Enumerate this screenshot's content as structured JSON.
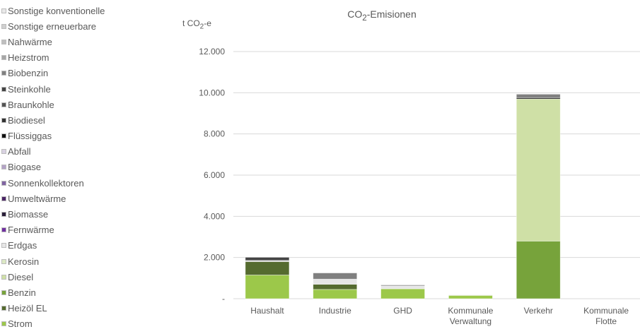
{
  "chart_data": {
    "type": "bar",
    "stacked": true,
    "title": "CO₂-Emisionen",
    "title_prefix": "CO",
    "title_sub": "2",
    "title_suffix": "-Emisionen",
    "ylabel": "t CO₂-e",
    "ylabel_prefix": "t CO",
    "ylabel_sub": "2",
    "ylabel_suffix": "-e",
    "ylim": [
      0,
      12000
    ],
    "yticks": [
      0,
      2000,
      4000,
      6000,
      8000,
      10000,
      12000
    ],
    "ytick_labels": [
      "-",
      "2.000",
      "4.000",
      "6.000",
      "8.000",
      "10.000",
      "12.000"
    ],
    "grid": true,
    "legend_position": "left",
    "categories": [
      [
        "Haushalt"
      ],
      [
        "Industrie"
      ],
      [
        "GHD"
      ],
      [
        "Kommunale",
        "Verwaltung"
      ],
      [
        "Verkehr"
      ],
      [
        "Kommunale",
        "Flotte"
      ]
    ],
    "series": [
      {
        "name": "Strom",
        "color": "#9cc84a",
        "values": [
          1150,
          450,
          480,
          160,
          0,
          0
        ]
      },
      {
        "name": "Heizöl EL",
        "color": "#556b2f",
        "values": [
          650,
          250,
          0,
          0,
          0,
          0
        ]
      },
      {
        "name": "Benzin",
        "color": "#77a33b",
        "values": [
          0,
          0,
          0,
          0,
          2800,
          0
        ]
      },
      {
        "name": "Diesel",
        "color": "#cfe0a6",
        "values": [
          0,
          0,
          0,
          0,
          6900,
          0
        ]
      },
      {
        "name": "Kerosin",
        "color": "#dce9c4",
        "values": [
          0,
          0,
          0,
          0,
          0,
          0
        ]
      },
      {
        "name": "Erdgas",
        "color": "#e6e6e6",
        "values": [
          40,
          250,
          130,
          30,
          0,
          0
        ]
      },
      {
        "name": "Fernwärme",
        "color": "#7030a0",
        "values": [
          0,
          0,
          0,
          0,
          0,
          0
        ]
      },
      {
        "name": "Biomasse",
        "color": "#2b1f3a",
        "values": [
          0,
          0,
          0,
          0,
          0,
          0
        ]
      },
      {
        "name": "Umweltwärme",
        "color": "#4b2566",
        "values": [
          0,
          0,
          0,
          0,
          0,
          0
        ]
      },
      {
        "name": "Sonnenkollektoren",
        "color": "#8064a2",
        "values": [
          0,
          0,
          0,
          0,
          0,
          0
        ]
      },
      {
        "name": "Biogase",
        "color": "#b3a2c7",
        "values": [
          0,
          0,
          0,
          0,
          0,
          0
        ]
      },
      {
        "name": "Abfall",
        "color": "#d9d2e2",
        "values": [
          0,
          0,
          0,
          0,
          0,
          0
        ]
      },
      {
        "name": "Flüssiggas",
        "color": "#111111",
        "values": [
          20,
          0,
          0,
          0,
          60,
          0
        ]
      },
      {
        "name": "Biodiesel",
        "color": "#333333",
        "values": [
          0,
          0,
          0,
          0,
          0,
          0
        ]
      },
      {
        "name": "Braunkohle",
        "color": "#555555",
        "values": [
          0,
          0,
          0,
          0,
          0,
          0
        ]
      },
      {
        "name": "Steinkohle",
        "color": "#444444",
        "values": [
          150,
          0,
          0,
          0,
          0,
          0
        ]
      },
      {
        "name": "Biobenzin",
        "color": "#808080",
        "values": [
          0,
          300,
          0,
          0,
          170,
          0
        ]
      },
      {
        "name": "Heizstrom",
        "color": "#a6a6a6",
        "values": [
          0,
          0,
          60,
          0,
          0,
          0
        ]
      },
      {
        "name": "Nahwärme",
        "color": "#bfbfbf",
        "values": [
          0,
          0,
          0,
          0,
          0,
          0
        ]
      },
      {
        "name": "Sonstige erneuerbare",
        "color": "#d0d0d0",
        "values": [
          0,
          0,
          0,
          0,
          0,
          0
        ]
      },
      {
        "name": "Sonstige konventionelle",
        "color": "#e8e8e8",
        "values": [
          0,
          0,
          0,
          0,
          0,
          0
        ]
      }
    ]
  }
}
